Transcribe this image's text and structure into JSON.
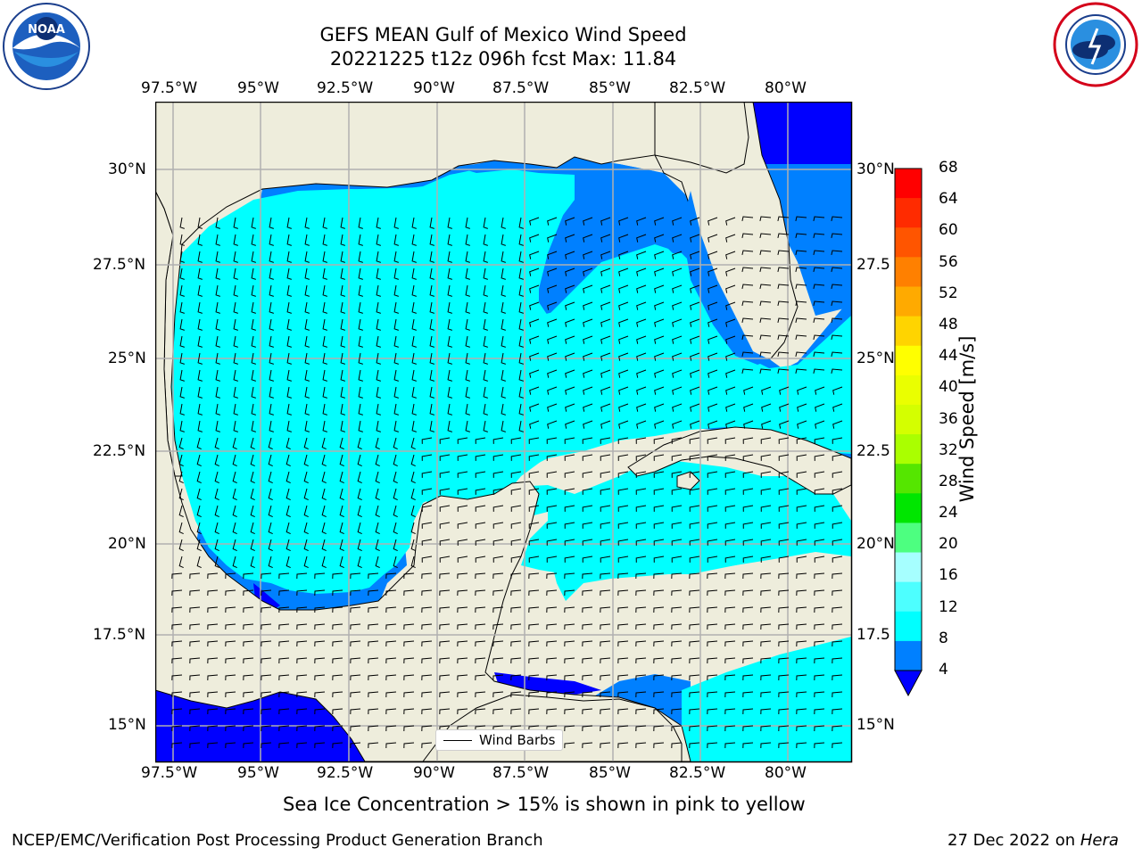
{
  "header": {
    "title_line1": "GEFS MEAN Gulf of Mexico Wind Speed",
    "title_line2": "20221225 t12z 096h fcst   Max: 11.84"
  },
  "logos": {
    "noaa_text": "NOAA",
    "noaa_ring": "NATIONAL OCEANIC AND ATMOSPHERIC ADMINISTRATION · U.S. DEPARTMENT OF COMMERCE",
    "nws_ring": "NATIONAL WEATHER SERVICE"
  },
  "axes": {
    "lon_labels": [
      "97.5°W",
      "95°W",
      "92.5°W",
      "90°W",
      "87.5°W",
      "85°W",
      "82.5°W",
      "80°W"
    ],
    "lat_labels": [
      "30°N",
      "27.5°N",
      "25°N",
      "22.5°N",
      "20°N",
      "17.5°N",
      "15°N"
    ],
    "lat_labels_right": [
      "30°N",
      "27.5",
      "25°N",
      "22.5",
      "20°N",
      "17.5",
      "15°N"
    ]
  },
  "colorbar": {
    "label": "Wind Speed [m/s]",
    "ticks": [
      "68",
      "64",
      "60",
      "56",
      "52",
      "48",
      "44",
      "40",
      "36",
      "32",
      "28",
      "24",
      "20",
      "16",
      "12",
      "8",
      "4"
    ],
    "colors": [
      "#ff0000",
      "#ff2b00",
      "#ff5500",
      "#ff8000",
      "#ffaa00",
      "#ffd400",
      "#ffff00",
      "#eaff00",
      "#d4ff00",
      "#aaff00",
      "#55e600",
      "#00e600",
      "#4dff80",
      "#a6ffff",
      "#4dffff",
      "#00ffff",
      "#0080ff"
    ],
    "extend_color": "#0000ff"
  },
  "legend": {
    "label": "Wind Barbs"
  },
  "note": "Sea Ice Concentration > 15% is shown in pink to yellow",
  "footer": {
    "left": "NCEP/EMC/Verification Post Processing Product Generation Branch",
    "right_prefix": "27 Dec 2022 on ",
    "right_machine": "Hera"
  },
  "map_colors": {
    "land": "#eeeddc",
    "ocean_4_8": "#0080ff",
    "ocean_8_12": "#00ffff",
    "ocean_lt4": "#0000ff",
    "grid": "#b0b0b0"
  }
}
